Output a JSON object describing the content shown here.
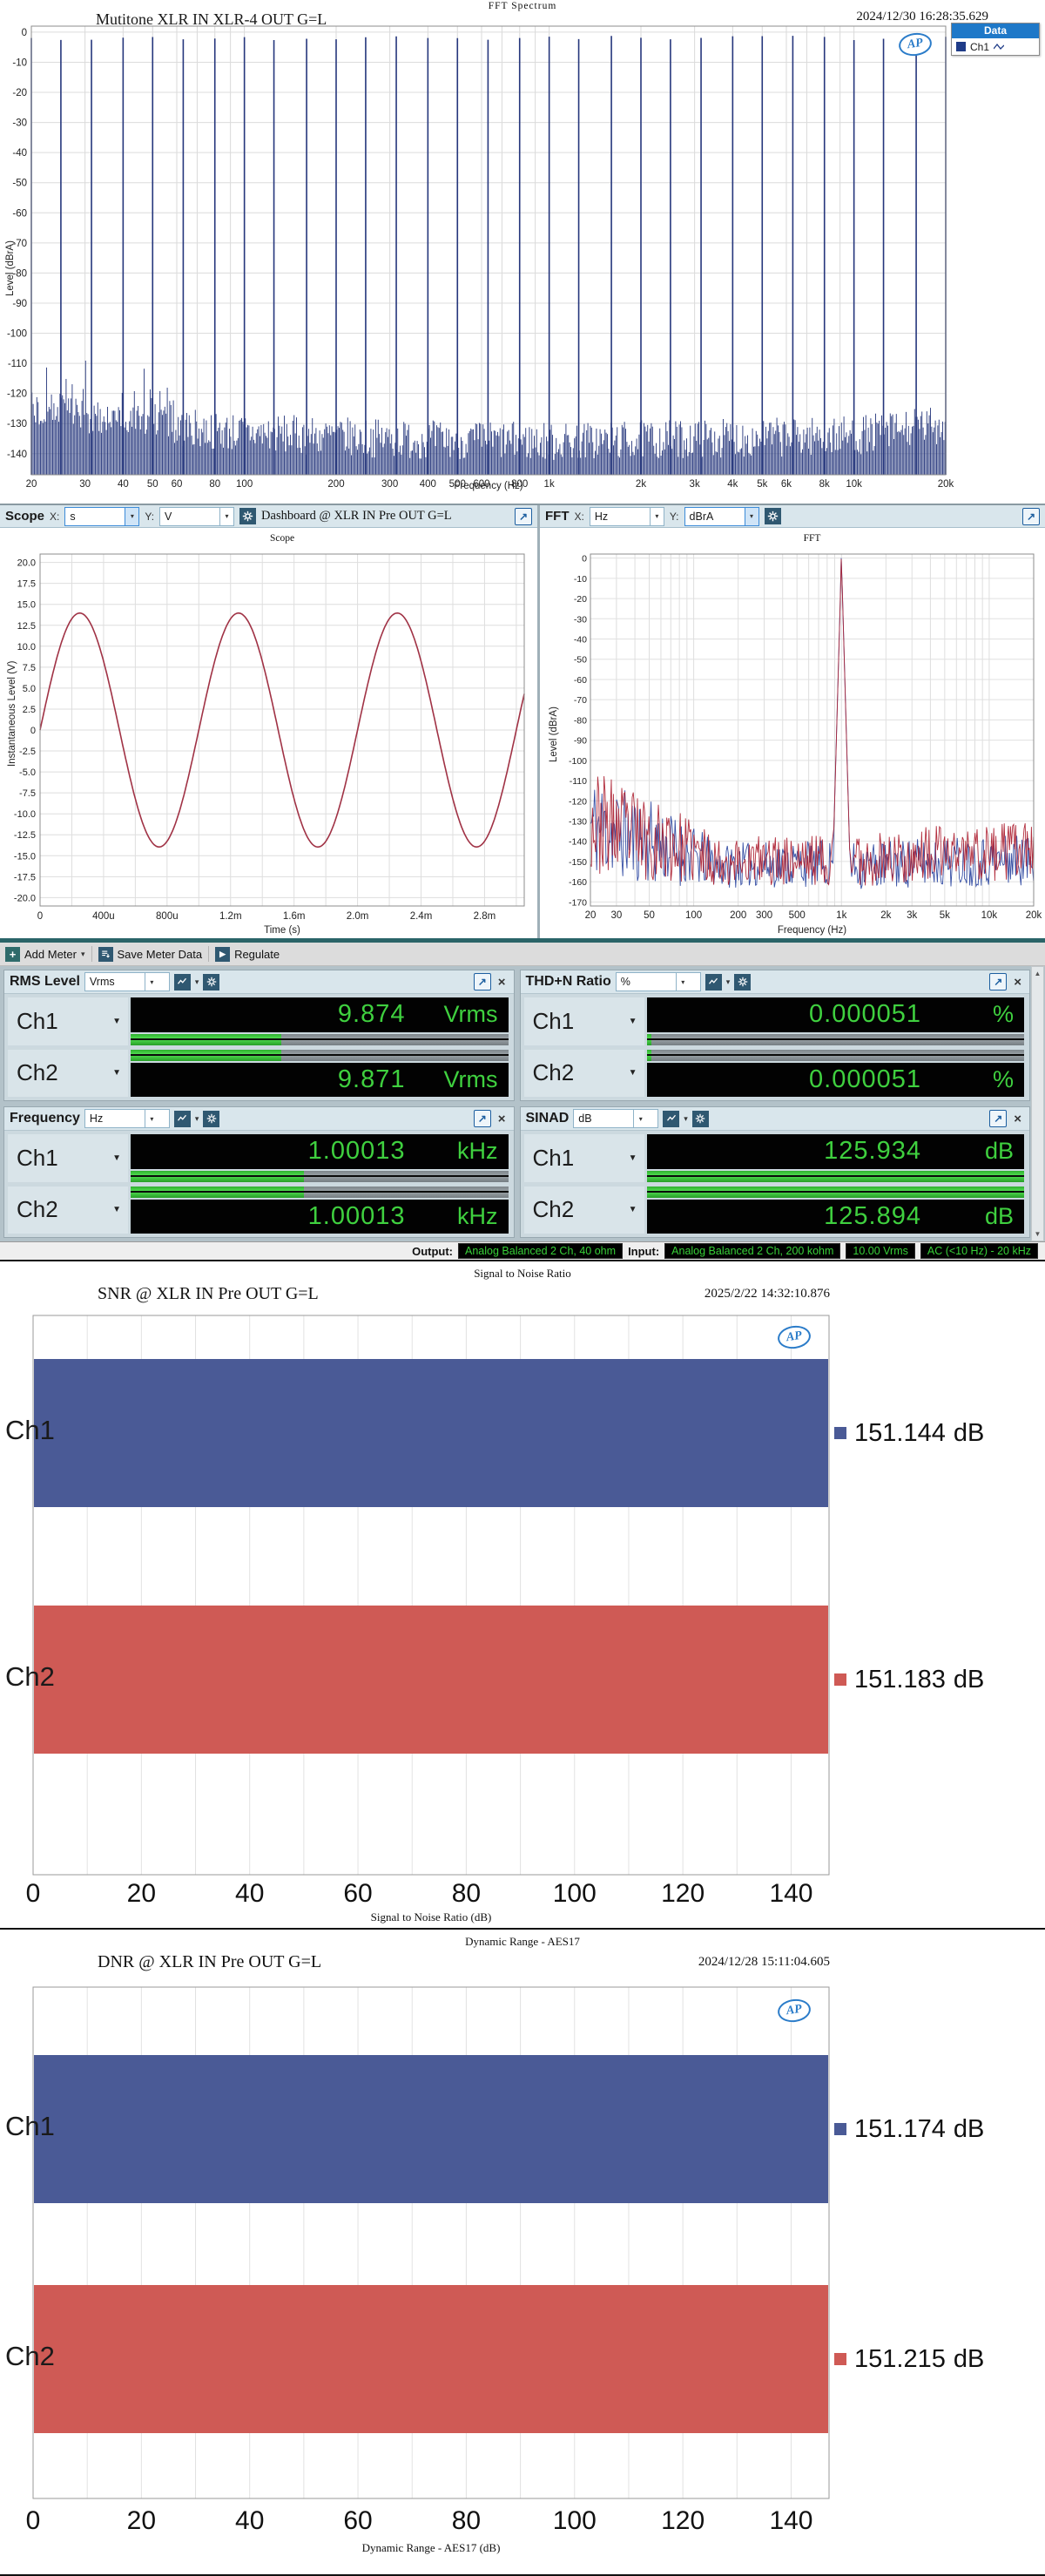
{
  "fft_spectrum": {
    "title": "FFT Spectrum",
    "trace_label": "Mutitone XLR IN XLR-4 OUT G=L",
    "timestamp": "2024/12/30 16:28:35.629",
    "legend_title": "Data",
    "legend_entry": "Ch1",
    "legend_color": "#1f3c88",
    "ylabel": "Level (dBrA)",
    "xlabel": "Frequency (Hz)",
    "chart_data": {
      "type": "line-spectrum",
      "x_scale": "log",
      "x_min": 20,
      "x_max": 20000,
      "y_min": -147,
      "y_max": 2,
      "y_ticks": [
        0,
        -10,
        -20,
        -30,
        -40,
        -50,
        -60,
        -70,
        -80,
        -90,
        -100,
        -110,
        -120,
        -130,
        -140
      ],
      "x_ticks": [
        [
          20,
          "20"
        ],
        [
          30,
          "30"
        ],
        [
          40,
          "40"
        ],
        [
          50,
          "50"
        ],
        [
          60,
          "60"
        ],
        [
          80,
          "80"
        ],
        [
          100,
          "100"
        ],
        [
          200,
          "200"
        ],
        [
          300,
          "300"
        ],
        [
          400,
          "400"
        ],
        [
          500,
          "500"
        ],
        [
          600,
          "600"
        ],
        [
          800,
          "800"
        ],
        [
          1000,
          "1k"
        ],
        [
          2000,
          "2k"
        ],
        [
          3000,
          "3k"
        ],
        [
          4000,
          "4k"
        ],
        [
          5000,
          "5k"
        ],
        [
          6000,
          "6k"
        ],
        [
          8000,
          "8k"
        ],
        [
          10000,
          "10k"
        ],
        [
          20000,
          "20k"
        ]
      ],
      "tone_freqs_hz": [
        20,
        25,
        31.5,
        40,
        50,
        63,
        80,
        100,
        125,
        160,
        200,
        250,
        315,
        400,
        500,
        630,
        800,
        1000,
        1250,
        1600,
        2000,
        2500,
        3150,
        4000,
        5000,
        6300,
        8000,
        10000,
        12500,
        16000,
        20000
      ],
      "tone_level_db": -2,
      "noise_profile": [
        [
          20,
          -126
        ],
        [
          40,
          -130
        ],
        [
          100,
          -133
        ],
        [
          300,
          -135
        ],
        [
          1000,
          -136
        ],
        [
          3000,
          -135
        ],
        [
          10000,
          -134
        ],
        [
          20000,
          -130
        ]
      ],
      "noise_jitter_db": 6.5,
      "trace_color": "#25367c",
      "seed": 7
    }
  },
  "dashboard": {
    "scope": {
      "name": "Scope",
      "x_label": "X:",
      "x_value": "s",
      "y_label": "Y:",
      "y_value": "V",
      "context": "Dashboard @ XLR IN Pre OUT G=L",
      "plot_title": "Scope",
      "ylabel": "Instantaneous Level (V)",
      "xlabel": "Time (s)",
      "chart_data": {
        "type": "line",
        "waveform": "sine",
        "amplitude_v": 13.96,
        "frequency_hz": 1000,
        "x_min": 0,
        "x_max": 0.00305,
        "y_min": -21,
        "y_max": 21,
        "y_ticks": [
          [
            20,
            "20.0"
          ],
          [
            17.5,
            "17.5"
          ],
          [
            15,
            "15.0"
          ],
          [
            12.5,
            "12.5"
          ],
          [
            10,
            "10.0"
          ],
          [
            7.5,
            "7.5"
          ],
          [
            5,
            "5.0"
          ],
          [
            2.5,
            "2.5"
          ],
          [
            0,
            "0"
          ],
          [
            -2.5,
            "-2.5"
          ],
          [
            -5,
            "-5.0"
          ],
          [
            -7.5,
            "-7.5"
          ],
          [
            -10,
            "-10.0"
          ],
          [
            -12.5,
            "-12.5"
          ],
          [
            -15,
            "-15.0"
          ],
          [
            -17.5,
            "-17.5"
          ],
          [
            -20,
            "-20.0"
          ]
        ],
        "x_ticks": [
          [
            0,
            "0"
          ],
          [
            0.0004,
            "400u"
          ],
          [
            0.0008,
            "800u"
          ],
          [
            0.0012,
            "1.2m"
          ],
          [
            0.0016,
            "1.6m"
          ],
          [
            0.002,
            "2.0m"
          ],
          [
            0.0024,
            "2.4m"
          ],
          [
            0.0028,
            "2.8m"
          ]
        ],
        "x_minor_step": 0.0002,
        "color": "#a03245"
      }
    },
    "fft": {
      "name": "FFT",
      "x_label": "X:",
      "x_value": "Hz",
      "y_label": "Y:",
      "y_value": "dBrA",
      "plot_title": "FFT",
      "ylabel": "Level (dBrA)",
      "xlabel": "Frequency (Hz)",
      "chart_data": {
        "type": "line-spectrum",
        "x_scale": "log",
        "x_min": 20,
        "x_max": 20000,
        "y_min": -172,
        "y_max": 2,
        "y_ticks": [
          0,
          -10,
          -20,
          -30,
          -40,
          -50,
          -60,
          -70,
          -80,
          -90,
          -100,
          -110,
          -120,
          -130,
          -140,
          -150,
          -160,
          -170
        ],
        "x_ticks": [
          [
            20,
            "20"
          ],
          [
            30,
            "30"
          ],
          [
            40,
            ""
          ],
          [
            50,
            "50"
          ],
          [
            60,
            ""
          ],
          [
            80,
            ""
          ],
          [
            100,
            "100"
          ],
          [
            200,
            "200"
          ],
          [
            300,
            "300"
          ],
          [
            400,
            ""
          ],
          [
            500,
            "500"
          ],
          [
            600,
            ""
          ],
          [
            800,
            ""
          ],
          [
            1000,
            "1k"
          ],
          [
            2000,
            "2k"
          ],
          [
            3000,
            "3k"
          ],
          [
            4000,
            ""
          ],
          [
            5000,
            "5k"
          ],
          [
            6000,
            ""
          ],
          [
            8000,
            ""
          ],
          [
            10000,
            "10k"
          ],
          [
            20000,
            "20k"
          ]
        ],
        "peak_freq": 1000,
        "skirt_slope": 2600,
        "series": [
          {
            "name": "Ch1",
            "color": "#2c47a0",
            "seed": 11,
            "peak_level": 0,
            "profile": [
              [
                20,
                -132
              ],
              [
                60,
                -142
              ],
              [
                150,
                -152
              ],
              [
                600,
                -151
              ],
              [
                1500,
                -152
              ],
              [
                5000,
                -150
              ],
              [
                20000,
                -149
              ]
            ],
            "jitter": [
              [
                20,
                26
              ],
              [
                60,
                20
              ],
              [
                150,
                11
              ],
              [
                1000,
                12
              ],
              [
                20000,
                13
              ]
            ]
          },
          {
            "name": "Ch2",
            "color": "#ae2334",
            "seed": 23,
            "peak_level": -0.5,
            "profile": [
              [
                20,
                -130
              ],
              [
                60,
                -140
              ],
              [
                150,
                -150
              ],
              [
                600,
                -149
              ],
              [
                1500,
                -149
              ],
              [
                5000,
                -146
              ],
              [
                20000,
                -145
              ]
            ],
            "jitter": [
              [
                20,
                26
              ],
              [
                60,
                20
              ],
              [
                150,
                12
              ],
              [
                1000,
                13
              ],
              [
                20000,
                15
              ]
            ]
          }
        ]
      }
    }
  },
  "meters": {
    "toolbar": {
      "add_meter": "Add Meter",
      "save_meter_data": "Save Meter Data",
      "regulate": "Regulate"
    },
    "panels": [
      {
        "title": "RMS Level",
        "unit": "Vrms",
        "channels": [
          {
            "name": "Ch1",
            "value": "9.874",
            "unit": "Vrms",
            "bar_fill": 0.4
          },
          {
            "name": "Ch2",
            "value": "9.871",
            "unit": "Vrms",
            "bar_fill": 0.4
          }
        ]
      },
      {
        "title": "THD+N Ratio",
        "unit": "%",
        "channels": [
          {
            "name": "Ch1",
            "value": "0.000051",
            "unit": "%",
            "bar_fill": 0.012
          },
          {
            "name": "Ch2",
            "value": "0.000051",
            "unit": "%",
            "bar_fill": 0.012
          }
        ]
      },
      {
        "title": "Frequency",
        "unit": "Hz",
        "channels": [
          {
            "name": "Ch1",
            "value": "1.00013",
            "unit": "kHz",
            "bar_fill": 0.46
          },
          {
            "name": "Ch2",
            "value": "1.00013",
            "unit": "kHz",
            "bar_fill": 0.46
          }
        ]
      },
      {
        "title": "SINAD",
        "unit": "dB",
        "channels": [
          {
            "name": "Ch1",
            "value": "125.934",
            "unit": "dB",
            "bar_fill": 1.0
          },
          {
            "name": "Ch2",
            "value": "125.894",
            "unit": "dB",
            "bar_fill": 1.0
          }
        ]
      }
    ],
    "status": {
      "output_label": "Output:",
      "output_value": "Analog Balanced 2 Ch, 40 ohm",
      "input_label": "Input:",
      "input_value": "Analog Balanced 2 Ch, 200 kohm",
      "level_value": "10.00 Vrms",
      "bandwidth_value": "AC (<10 Hz) - 20 kHz"
    }
  },
  "snr_chart": {
    "title": "Signal to Noise Ratio",
    "label": "SNR @ XLR IN Pre OUT G=L",
    "timestamp": "2025/2/22 14:32:10.876",
    "xlabel": "Signal to Noise Ratio (dB)",
    "chart_data": {
      "type": "bar",
      "orientation": "horizontal",
      "categories": [
        "Ch1",
        "Ch2"
      ],
      "values": [
        151.144,
        151.183
      ],
      "value_labels": [
        "151.144",
        "151.183"
      ],
      "unit": "dB",
      "colors": [
        "#4a5a96",
        "#cf5a55"
      ],
      "x_ticks": [
        0,
        20,
        40,
        60,
        80,
        100,
        120,
        140
      ],
      "x_axis_max": 147,
      "grid_step": 10
    }
  },
  "dnr_chart": {
    "title": "Dynamic Range - AES17",
    "label": "DNR @ XLR IN Pre OUT G=L",
    "timestamp": "2024/12/28 15:11:04.605",
    "xlabel": "Dynamic Range - AES17 (dB)",
    "chart_data": {
      "type": "bar",
      "orientation": "horizontal",
      "categories": [
        "Ch1",
        "Ch2"
      ],
      "values": [
        151.174,
        151.215
      ],
      "value_labels": [
        "151.174",
        "151.215"
      ],
      "unit": "dB",
      "colors": [
        "#4a5a96",
        "#cf5a55"
      ],
      "x_ticks": [
        0,
        20,
        40,
        60,
        80,
        100,
        120,
        140
      ],
      "x_axis_max": 147,
      "grid_step": 10
    }
  }
}
